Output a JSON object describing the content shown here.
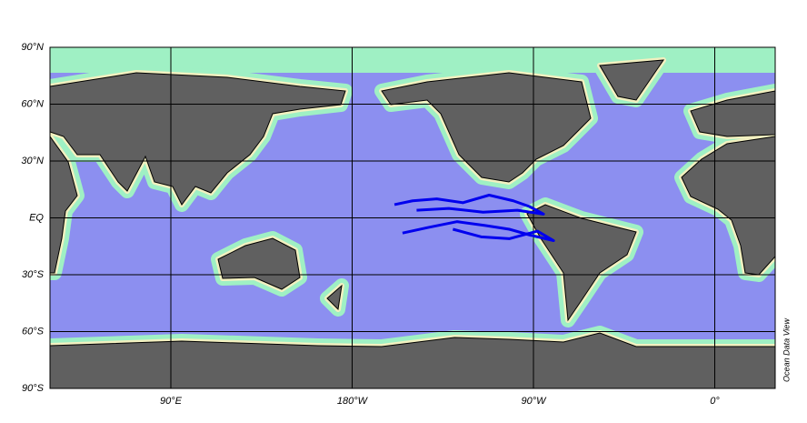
{
  "map": {
    "lat_ticks": [
      {
        "value": 90,
        "label": "90°N"
      },
      {
        "value": 60,
        "label": "60°N"
      },
      {
        "value": 30,
        "label": "30°N"
      },
      {
        "value": 0,
        "label": "EQ"
      },
      {
        "value": -30,
        "label": "30°S"
      },
      {
        "value": -60,
        "label": "60°S"
      },
      {
        "value": -90,
        "label": "90°S"
      }
    ],
    "lon_ticks": [
      {
        "value": 90,
        "label": "90°E"
      },
      {
        "value": 180,
        "label": "180°W"
      },
      {
        "value": 270,
        "label": "90°W"
      },
      {
        "value": 360,
        "label": "0°"
      }
    ],
    "lon_range": [
      30,
      390
    ],
    "lat_range": [
      -90,
      90
    ],
    "credit": "Ocean Data View",
    "track_color": "#0000ee",
    "tracks": [
      {
        "lon": [
          201,
          210,
          222,
          235,
          248,
          260,
          268,
          275,
          262,
          245,
          228,
          212
        ],
        "lat": [
          7,
          9,
          10,
          8,
          12,
          9,
          6,
          2,
          4,
          3,
          5,
          4
        ]
      },
      {
        "lon": [
          205,
          218,
          232,
          246,
          258,
          268,
          280,
          272,
          258,
          244,
          230
        ],
        "lat": [
          -8,
          -5,
          -2,
          -4,
          -6,
          -9,
          -12,
          -7,
          -11,
          -10,
          -6
        ]
      }
    ]
  }
}
